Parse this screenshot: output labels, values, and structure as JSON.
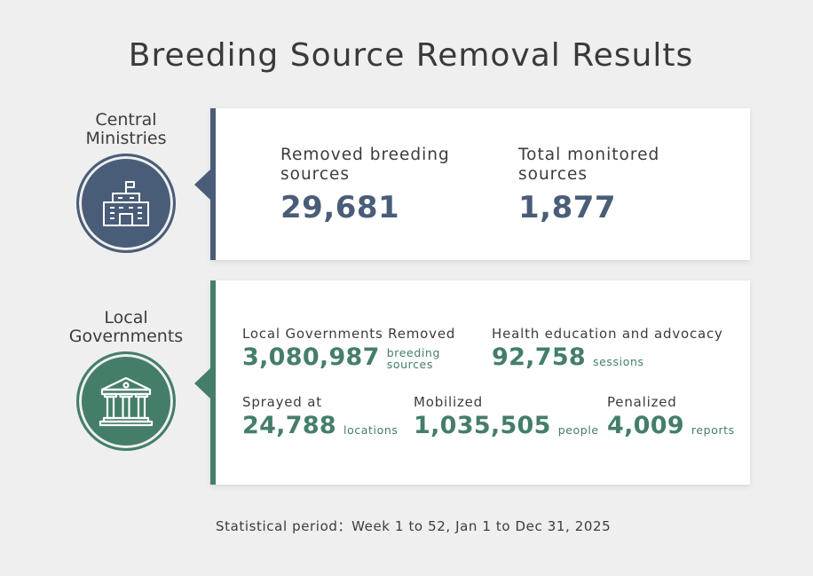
{
  "title": "Breeding Source Removal Results",
  "central": {
    "label": "Central Ministries",
    "icon": "government-building-icon",
    "color": "#4a5d78",
    "stats": [
      {
        "label": "Removed breeding sources",
        "value": "29,681"
      },
      {
        "label": "Total monitored sources",
        "value": "1,877"
      }
    ]
  },
  "local": {
    "label": "Local Governments",
    "icon": "courthouse-pillars-icon",
    "color": "#447e69",
    "removed": {
      "label": "Local Governments  Removed",
      "value": "3,080,987",
      "unit": "breeding sources"
    },
    "education": {
      "label": "Health education and advocacy",
      "value": "92,758",
      "unit": "sessions"
    },
    "sprayed": {
      "label": "Sprayed at",
      "value": "24,788",
      "unit": "locations"
    },
    "mobilized": {
      "label": "Mobilized",
      "value": "1,035,505",
      "unit": "people"
    },
    "penalized": {
      "label": "Penalized",
      "value": "4,009",
      "unit": "reports"
    }
  },
  "footer": "Statistical period：Week 1 to 52, Jan 1 to Dec 31, 2025"
}
